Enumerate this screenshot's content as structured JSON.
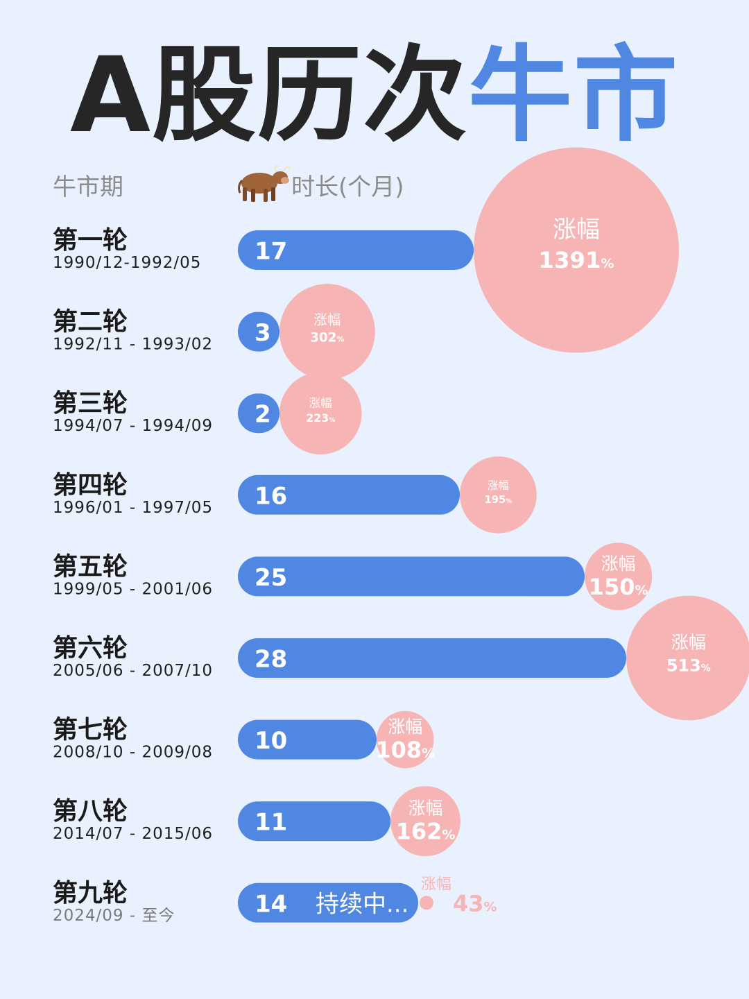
{
  "title": {
    "part1": "A股历次",
    "part2": "牛市"
  },
  "headers": {
    "period": "牛市期",
    "duration": "时长(个月)"
  },
  "icons": {
    "header": "cow-icon"
  },
  "colors": {
    "bar": "#4f87e2",
    "bubble": "#f7b4b4",
    "title_dark": "#262626",
    "title_accent": "#4f87e2",
    "background": "#e9f1fe"
  },
  "chart_data": {
    "type": "bar",
    "orientation": "horizontal",
    "gain_label": "涨幅",
    "gain_unit": "%",
    "categories": [
      "第一轮",
      "第二轮",
      "第三轮",
      "第四轮",
      "第五轮",
      "第六轮",
      "第七轮",
      "第八轮",
      "第九轮"
    ],
    "periods": [
      "1990/12-1992/05",
      "1992/11 - 1993/02",
      "1994/07 - 1994/09",
      "1996/01 - 1997/05",
      "1999/05 - 2001/06",
      "2005/06 - 2007/10",
      "2008/10 - 2009/08",
      "2014/07 - 2015/06",
      "2024/09 - 至今"
    ],
    "series": [
      {
        "values": [
          17,
          3,
          2,
          16,
          25,
          28,
          10,
          11,
          14
        ]
      },
      {
        "values": [
          1391,
          302,
          223,
          195,
          150,
          513,
          108,
          162,
          43
        ]
      }
    ],
    "notes": [
      "",
      "",
      "",
      "",
      "",
      "",
      "",
      "",
      "持续中..."
    ]
  }
}
